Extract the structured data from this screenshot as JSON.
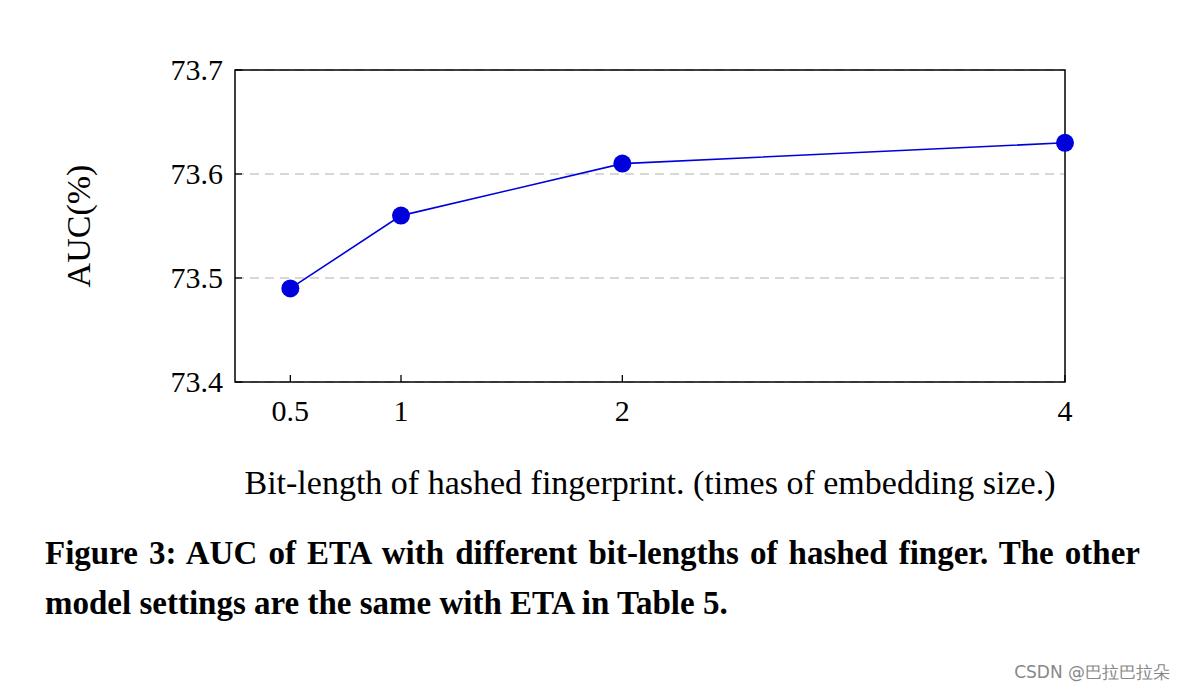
{
  "chart_data": {
    "type": "line",
    "x_label": "Bit-length of hashed fingerprint. (times of embedding size.)",
    "y_label": "AUC(%)",
    "caption": "Figure 3: AUC of ETA with different bit-lengths of hashed finger. The other model settings are the same with ETA in Table 5.",
    "annotations": [
      "CSDN @巴拉巴拉朵"
    ],
    "x": [
      0.5,
      1,
      2,
      4
    ],
    "values": [
      73.49,
      73.56,
      73.61,
      73.63
    ],
    "color": "#0000dd",
    "marker": "circle",
    "line_style": "solid",
    "xlim": [
      0.25,
      4
    ],
    "xticks": [
      0.5,
      1,
      2,
      4
    ],
    "ylim": [
      73.4,
      73.7
    ],
    "yticks": [
      73.4,
      73.5,
      73.6,
      73.7
    ],
    "grid": true
  }
}
